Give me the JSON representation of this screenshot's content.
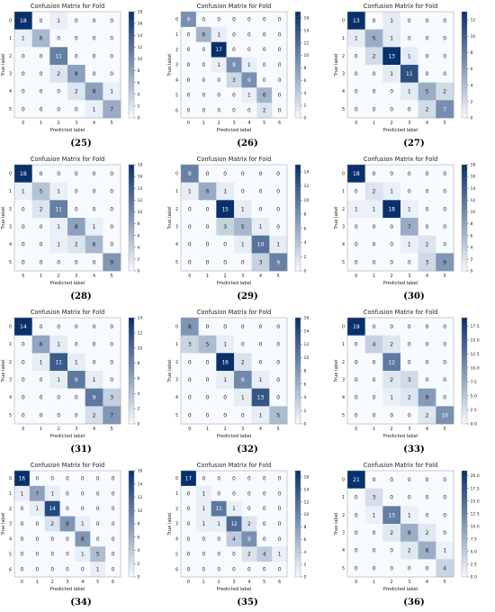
{
  "colors": {
    "min": "#f7fbff",
    "max": "#08306b",
    "text_light": "#ffffff",
    "text_dark": "#222222"
  },
  "chart_data": [
    {
      "type": "heatmap",
      "title": "Confusion Matrix for Fold",
      "caption": "(25)",
      "xlabel": "Predicted label",
      "ylabel": "True label",
      "labels": [
        "0",
        "1",
        "2",
        "3",
        "4",
        "5"
      ],
      "colorbar_max": 18,
      "colorbar_ticks": [
        "0",
        "2",
        "4",
        "6",
        "8",
        "10",
        "12",
        "14",
        "16",
        "18"
      ],
      "matrix": [
        [
          18,
          0,
          1,
          0,
          0,
          0
        ],
        [
          1,
          6,
          0,
          0,
          0,
          0
        ],
        [
          0,
          0,
          11,
          0,
          0,
          0
        ],
        [
          0,
          0,
          2,
          8,
          0,
          0
        ],
        [
          0,
          0,
          0,
          2,
          8,
          1
        ],
        [
          0,
          0,
          0,
          0,
          1,
          7
        ]
      ]
    },
    {
      "type": "heatmap",
      "title": "Confusion Matrix for Fold",
      "caption": "(26)",
      "xlabel": "Predicted label",
      "ylabel": "True label",
      "labels": [
        "0",
        "1",
        "2",
        "3",
        "4",
        "5",
        "6"
      ],
      "colorbar_max": 17,
      "colorbar_ticks": [
        "0",
        "2",
        "4",
        "6",
        "8",
        "10",
        "12",
        "14",
        "16"
      ],
      "matrix": [
        [
          9,
          0,
          0,
          0,
          0,
          0,
          0
        ],
        [
          0,
          6,
          1,
          0,
          0,
          0,
          0
        ],
        [
          0,
          0,
          17,
          0,
          0,
          0,
          0
        ],
        [
          0,
          0,
          1,
          9,
          1,
          0,
          0
        ],
        [
          0,
          0,
          0,
          3,
          9,
          0,
          0
        ],
        [
          0,
          0,
          0,
          0,
          1,
          6,
          0
        ],
        [
          0,
          0,
          0,
          0,
          0,
          2,
          0
        ]
      ]
    },
    {
      "type": "heatmap",
      "title": "Confusion Matrix for Fold",
      "caption": "(27)",
      "xlabel": "Predicted label",
      "ylabel": "True label",
      "labels": [
        "0",
        "1",
        "2",
        "3",
        "4",
        "5"
      ],
      "colorbar_max": 13,
      "colorbar_ticks": [
        "0",
        "2",
        "4",
        "6",
        "8",
        "10",
        "12"
      ],
      "matrix": [
        [
          13,
          0,
          1,
          0,
          0,
          0
        ],
        [
          1,
          5,
          1,
          0,
          0,
          0
        ],
        [
          0,
          2,
          13,
          1,
          0,
          0
        ],
        [
          0,
          0,
          1,
          11,
          0,
          0
        ],
        [
          0,
          0,
          0,
          1,
          5,
          2
        ],
        [
          0,
          0,
          0,
          0,
          2,
          7
        ]
      ]
    },
    {
      "type": "heatmap",
      "title": "Confusion Matrix for Fold",
      "caption": "(28)",
      "xlabel": "Predicted label",
      "ylabel": "True label",
      "labels": [
        "0",
        "1",
        "2",
        "3",
        "4",
        "5"
      ],
      "colorbar_max": 18,
      "colorbar_ticks": [
        "0",
        "2",
        "4",
        "6",
        "8",
        "10",
        "12",
        "14",
        "16",
        "18"
      ],
      "matrix": [
        [
          18,
          0,
          0,
          0,
          0,
          0
        ],
        [
          1,
          5,
          1,
          0,
          0,
          0
        ],
        [
          0,
          2,
          11,
          0,
          0,
          0
        ],
        [
          0,
          0,
          1,
          8,
          1,
          0
        ],
        [
          0,
          0,
          1,
          2,
          6,
          0
        ],
        [
          0,
          0,
          0,
          0,
          0,
          9
        ]
      ]
    },
    {
      "type": "heatmap",
      "title": "Confusion Matrix for Fold",
      "caption": "(29)",
      "xlabel": "Predicted label",
      "ylabel": "True label",
      "labels": [
        "0",
        "1",
        "2",
        "3",
        "4",
        "5"
      ],
      "colorbar_max": 15,
      "colorbar_ticks": [
        "0",
        "2",
        "4",
        "6",
        "8",
        "10",
        "12",
        "14"
      ],
      "matrix": [
        [
          9,
          0,
          0,
          0,
          0,
          0
        ],
        [
          1,
          6,
          1,
          0,
          0,
          0
        ],
        [
          0,
          0,
          15,
          1,
          0,
          0
        ],
        [
          0,
          0,
          3,
          5,
          1,
          0
        ],
        [
          0,
          0,
          0,
          1,
          10,
          1
        ],
        [
          0,
          0,
          0,
          0,
          3,
          9
        ]
      ]
    },
    {
      "type": "heatmap",
      "title": "Confusion Matrix for Fold",
      "caption": "(30)",
      "xlabel": "Predicted label",
      "ylabel": "True label",
      "labels": [
        "0",
        "1",
        "2",
        "3",
        "4",
        "5"
      ],
      "colorbar_max": 18,
      "colorbar_ticks": [
        "0",
        "2",
        "4",
        "6",
        "8",
        "10",
        "12",
        "14",
        "16",
        "18"
      ],
      "matrix": [
        [
          18,
          0,
          0,
          0,
          0,
          0
        ],
        [
          0,
          2,
          1,
          0,
          0,
          0
        ],
        [
          1,
          1,
          18,
          1,
          0,
          0
        ],
        [
          0,
          0,
          0,
          7,
          0,
          0
        ],
        [
          0,
          0,
          0,
          1,
          2,
          0
        ],
        [
          0,
          0,
          0,
          0,
          3,
          9
        ]
      ]
    },
    {
      "type": "heatmap",
      "title": "Confusion Matrix for Fold",
      "caption": "(31)",
      "xlabel": "Predicted label",
      "ylabel": "True label",
      "labels": [
        "0",
        "1",
        "2",
        "3",
        "4",
        "5"
      ],
      "colorbar_max": 14,
      "colorbar_ticks": [
        "0",
        "2",
        "4",
        "6",
        "8",
        "10",
        "12",
        "14"
      ],
      "matrix": [
        [
          14,
          0,
          0,
          0,
          0,
          0
        ],
        [
          0,
          6,
          1,
          0,
          0,
          0
        ],
        [
          0,
          1,
          11,
          1,
          0,
          0
        ],
        [
          0,
          0,
          1,
          9,
          1,
          0
        ],
        [
          0,
          0,
          0,
          0,
          9,
          3
        ],
        [
          0,
          0,
          0,
          0,
          2,
          7
        ]
      ]
    },
    {
      "type": "heatmap",
      "title": "Confusion Matrix for Fold",
      "caption": "(32)",
      "xlabel": "Predicted label",
      "ylabel": "True label",
      "labels": [
        "0",
        "1",
        "2",
        "3",
        "4",
        "5"
      ],
      "colorbar_max": 16,
      "colorbar_ticks": [
        "0",
        "2",
        "4",
        "6",
        "8",
        "10",
        "12",
        "14",
        "16"
      ],
      "matrix": [
        [
          8,
          0,
          0,
          0,
          0,
          0
        ],
        [
          3,
          5,
          1,
          0,
          0,
          0
        ],
        [
          0,
          0,
          16,
          2,
          0,
          0
        ],
        [
          0,
          0,
          1,
          9,
          1,
          0
        ],
        [
          0,
          0,
          0,
          1,
          13,
          0
        ],
        [
          0,
          0,
          0,
          0,
          1,
          5
        ]
      ]
    },
    {
      "type": "heatmap",
      "title": "Confusion Matrix for Fold",
      "caption": "(33)",
      "xlabel": "Predicted label",
      "ylabel": "True label",
      "labels": [
        "0",
        "1",
        "2",
        "3",
        "4",
        "5"
      ],
      "colorbar_max": 19,
      "colorbar_ticks": [
        "0.0",
        "2.5",
        "5.0",
        "7.5",
        "10.0",
        "12.5",
        "15.0",
        "17.5"
      ],
      "matrix": [
        [
          19,
          0,
          0,
          0,
          0,
          0
        ],
        [
          0,
          4,
          2,
          0,
          0,
          0
        ],
        [
          0,
          0,
          12,
          0,
          0,
          0
        ],
        [
          0,
          0,
          2,
          3,
          0,
          0
        ],
        [
          0,
          0,
          1,
          2,
          9,
          0
        ],
        [
          0,
          0,
          0,
          0,
          2,
          10
        ]
      ]
    },
    {
      "type": "heatmap",
      "title": "Confusion Matrix for Fold",
      "caption": "(34)",
      "xlabel": "Predicted label",
      "ylabel": "True label",
      "labels": [
        "0",
        "1",
        "2",
        "3",
        "4",
        "5",
        "6"
      ],
      "colorbar_max": 16,
      "colorbar_ticks": [
        "0",
        "2",
        "4",
        "6",
        "8",
        "10",
        "12",
        "14",
        "16"
      ],
      "matrix": [
        [
          16,
          0,
          0,
          0,
          0,
          0,
          0
        ],
        [
          1,
          7,
          1,
          0,
          0,
          0,
          0
        ],
        [
          0,
          1,
          14,
          0,
          0,
          0,
          0
        ],
        [
          0,
          0,
          2,
          8,
          1,
          0,
          0
        ],
        [
          0,
          0,
          0,
          0,
          8,
          0,
          0
        ],
        [
          0,
          0,
          0,
          0,
          1,
          5,
          0
        ],
        [
          0,
          0,
          0,
          0,
          0,
          1,
          0
        ]
      ]
    },
    {
      "type": "heatmap",
      "title": "Confusion Matrix for Fold",
      "caption": "(35)",
      "xlabel": "Predicted label",
      "ylabel": "True label",
      "labels": [
        "0",
        "1",
        "2",
        "3",
        "4",
        "5",
        "6"
      ],
      "colorbar_max": 17,
      "colorbar_ticks": [
        "0",
        "2",
        "4",
        "6",
        "8",
        "10",
        "12",
        "14",
        "16"
      ],
      "matrix": [
        [
          17,
          0,
          0,
          0,
          0,
          0,
          0
        ],
        [
          0,
          1,
          0,
          0,
          0,
          0,
          0
        ],
        [
          0,
          1,
          11,
          1,
          0,
          0,
          0
        ],
        [
          0,
          1,
          1,
          12,
          2,
          0,
          0
        ],
        [
          0,
          0,
          0,
          4,
          9,
          0,
          0
        ],
        [
          0,
          0,
          0,
          0,
          2,
          4,
          1
        ],
        [
          0,
          0,
          0,
          0,
          0,
          0,
          0
        ]
      ]
    },
    {
      "type": "heatmap",
      "title": "Confusion Matrix for Fold",
      "caption": "(36)",
      "xlabel": "Predicted label",
      "ylabel": "True label",
      "labels": [
        "0",
        "1",
        "2",
        "3",
        "4",
        "5"
      ],
      "colorbar_max": 21,
      "colorbar_ticks": [
        "0.0",
        "2.5",
        "5.0",
        "7.5",
        "10.0",
        "12.5",
        "15.0",
        "17.5",
        "20.0"
      ],
      "matrix": [
        [
          21,
          0,
          0,
          0,
          0,
          0
        ],
        [
          0,
          3,
          0,
          0,
          0,
          0
        ],
        [
          0,
          1,
          13,
          1,
          0,
          0
        ],
        [
          0,
          0,
          2,
          8,
          2,
          0
        ],
        [
          0,
          0,
          0,
          2,
          8,
          1
        ],
        [
          0,
          0,
          0,
          0,
          0,
          4
        ]
      ]
    }
  ]
}
